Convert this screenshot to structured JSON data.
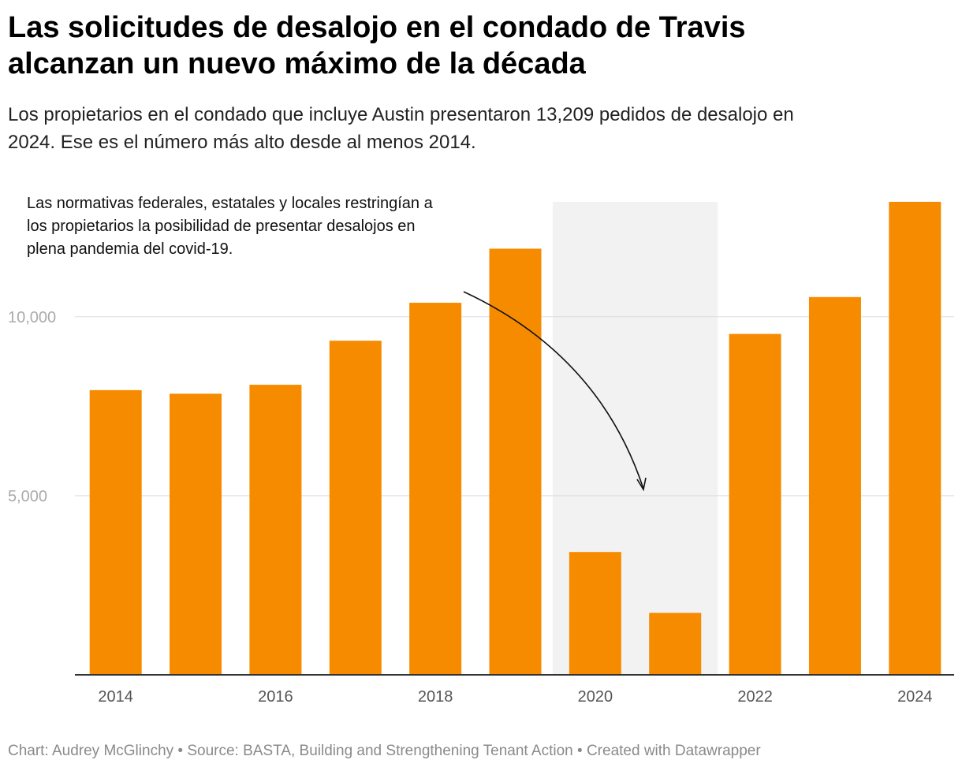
{
  "header": {
    "title_line1": "Las solicitudes de desalojo en el condado de Travis",
    "title_line2": "alcanzan un nuevo máximo de la década",
    "subtitle_line1": "Los propietarios en el condado que incluye Austin presentaron 13,209 pedidos de desalojo en",
    "subtitle_line2": "2024. Ese es el número más alto desde al menos 2014."
  },
  "annotation": {
    "line1": "Las normativas federales, estatales y locales restringían a",
    "line2": "los propietarios la posibilidad de presentar desalojos en",
    "line3": "plena pandemia del covid-19."
  },
  "chart_data": {
    "type": "bar",
    "title": "Las solicitudes de desalojo en el condado de Travis alcanzan un nuevo máximo de la década",
    "categories": [
      "2014",
      "2015",
      "2016",
      "2017",
      "2018",
      "2019",
      "2020",
      "2021",
      "2022",
      "2023",
      "2024"
    ],
    "values": [
      7950,
      7850,
      8100,
      9330,
      10390,
      11900,
      3430,
      1730,
      9520,
      10550,
      13209
    ],
    "x_tick_labels": [
      "2014",
      "2016",
      "2018",
      "2020",
      "2022",
      "2024"
    ],
    "y_ticks": [
      5000,
      10000
    ],
    "y_tick_labels": [
      "5,000",
      "10,000"
    ],
    "ylim": [
      0,
      13209
    ],
    "xlabel": "",
    "ylabel": "",
    "bar_color": "#f78b00",
    "highlight_range": [
      "2020",
      "2021"
    ],
    "highlight_color": "#f2f2f2",
    "grid": true
  },
  "footer": {
    "credit": "Chart: Audrey McGlinchy • Source: BASTA, Building and Strengthening Tenant Action • Created with Datawrapper"
  }
}
